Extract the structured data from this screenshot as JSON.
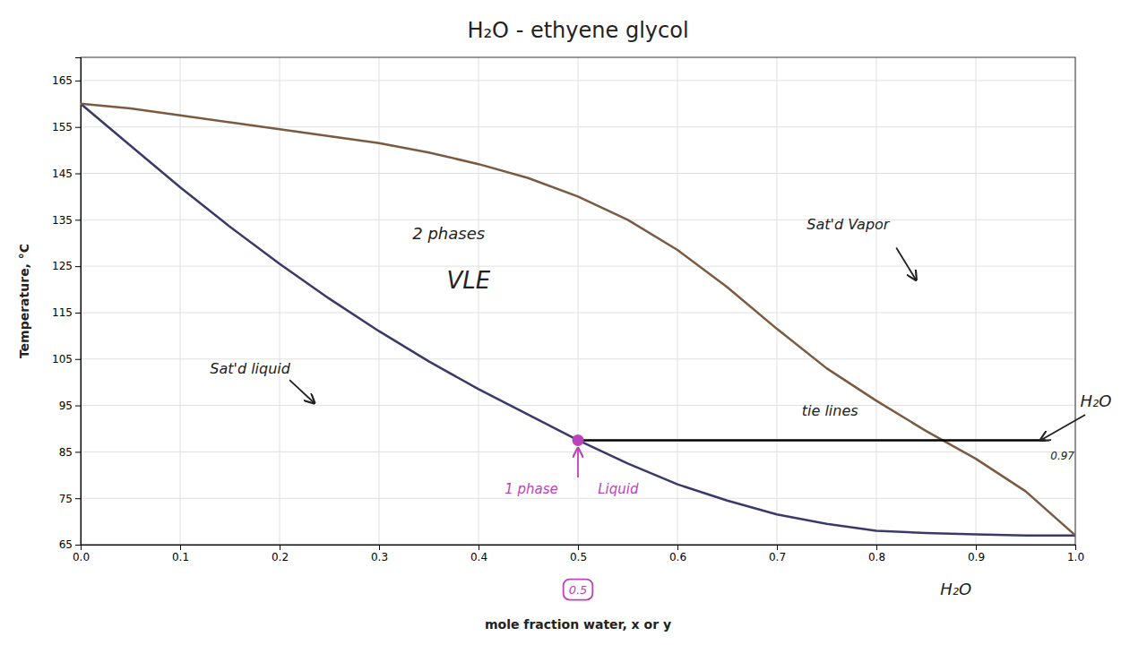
{
  "chart_data": {
    "type": "line",
    "title": "H₂O - ethyene glycol",
    "x_label": "mole fraction water, x or y",
    "y_label": "Temperature, °C",
    "xlim": [
      0,
      1
    ],
    "ylim": [
      65,
      170
    ],
    "xticks": [
      {
        "value": 0,
        "label": "0.0"
      },
      0.1,
      0.2,
      0.3,
      0.4,
      0.5,
      0.6,
      0.7,
      0.8,
      0.9,
      {
        "value": 1.0,
        "label": "1.0"
      }
    ],
    "yticks": [
      65,
      75,
      85,
      95,
      105,
      115,
      125,
      135,
      145,
      155,
      165
    ],
    "grid": true,
    "series": [
      {
        "type": "line",
        "color": "#3a3a6a",
        "x": [
          0.0,
          0.05,
          0.1,
          0.15,
          0.2,
          0.25,
          0.3,
          0.35,
          0.4,
          0.45,
          0.5,
          0.55,
          0.6,
          0.65,
          0.7,
          0.75,
          0.8,
          0.85,
          0.9,
          0.95,
          1.0
        ],
        "values": [
          160.0,
          151.0,
          142.0,
          133.5,
          125.5,
          118.0,
          111.0,
          104.5,
          98.5,
          93.0,
          87.5,
          82.5,
          78.0,
          74.5,
          71.5,
          69.5,
          68.0,
          67.5,
          67.2,
          67.0,
          67.0
        ]
      },
      {
        "type": "line",
        "color": "#7a5a40",
        "x": [
          0.0,
          0.05,
          0.1,
          0.15,
          0.2,
          0.25,
          0.3,
          0.35,
          0.4,
          0.45,
          0.5,
          0.55,
          0.6,
          0.65,
          0.7,
          0.75,
          0.8,
          0.85,
          0.9,
          0.95,
          1.0
        ],
        "values": [
          160.0,
          159.0,
          157.5,
          156.0,
          154.5,
          153.0,
          151.5,
          149.5,
          147.0,
          144.0,
          140.0,
          135.0,
          128.5,
          120.5,
          111.5,
          103.0,
          96.0,
          89.5,
          83.5,
          76.5,
          67.0
        ]
      },
      {
        "type": "line",
        "color": "black",
        "x": [
          0.5,
          0.97
        ],
        "values": [
          87.5,
          87.5
        ]
      },
      {
        "type": "scatter",
        "marker": "circle",
        "color": "#bb44bb",
        "x": [
          0.5
        ],
        "values": [
          87.5
        ]
      }
    ],
    "annotations": [
      {
        "text": "2 phases"
      },
      {
        "text": "VLE"
      },
      {
        "text": "Sat'd liquid"
      },
      {
        "text": "Sat'd Vapor"
      },
      {
        "text": "tie lines"
      },
      {
        "text": "H₂O"
      },
      {
        "text": "0.97"
      },
      {
        "text": "1 phase",
        "color": "#bb44bb"
      },
      {
        "text": "Liquid",
        "color": "#bb44bb"
      },
      {
        "text": "0.5",
        "color": "#bb44bb"
      },
      {
        "text": "H₂O"
      }
    ]
  }
}
